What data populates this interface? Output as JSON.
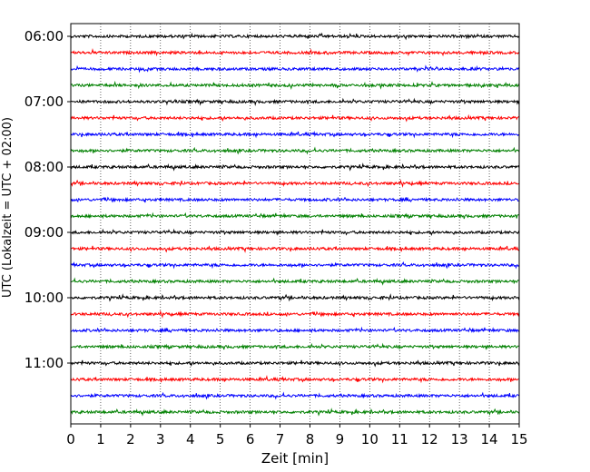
{
  "chart_data": {
    "type": "line",
    "title": "",
    "xlabel": "Zeit  [min]",
    "ylabel": "UTC (Lokalzeit = UTC + 02:00)",
    "xlim": [
      0,
      15
    ],
    "x_ticks": [
      "0",
      "1",
      "2",
      "3",
      "4",
      "5",
      "6",
      "7",
      "8",
      "9",
      "10",
      "11",
      "12",
      "13",
      "14",
      "15"
    ],
    "y_tick_labels": [
      "06:00",
      "07:00",
      "08:00",
      "09:00",
      "10:00",
      "11:00"
    ],
    "grid": "vertical dotted lines at each minute",
    "trace_interval_min": 15,
    "start_time": "06:00",
    "num_traces": 24,
    "trace_colors": [
      "#000000",
      "#ff0000",
      "#0000ff",
      "#008000"
    ],
    "trace_note": "Seismogram helicorder: each row is a 15-minute trace; colors cycle black, red, blue, green"
  }
}
